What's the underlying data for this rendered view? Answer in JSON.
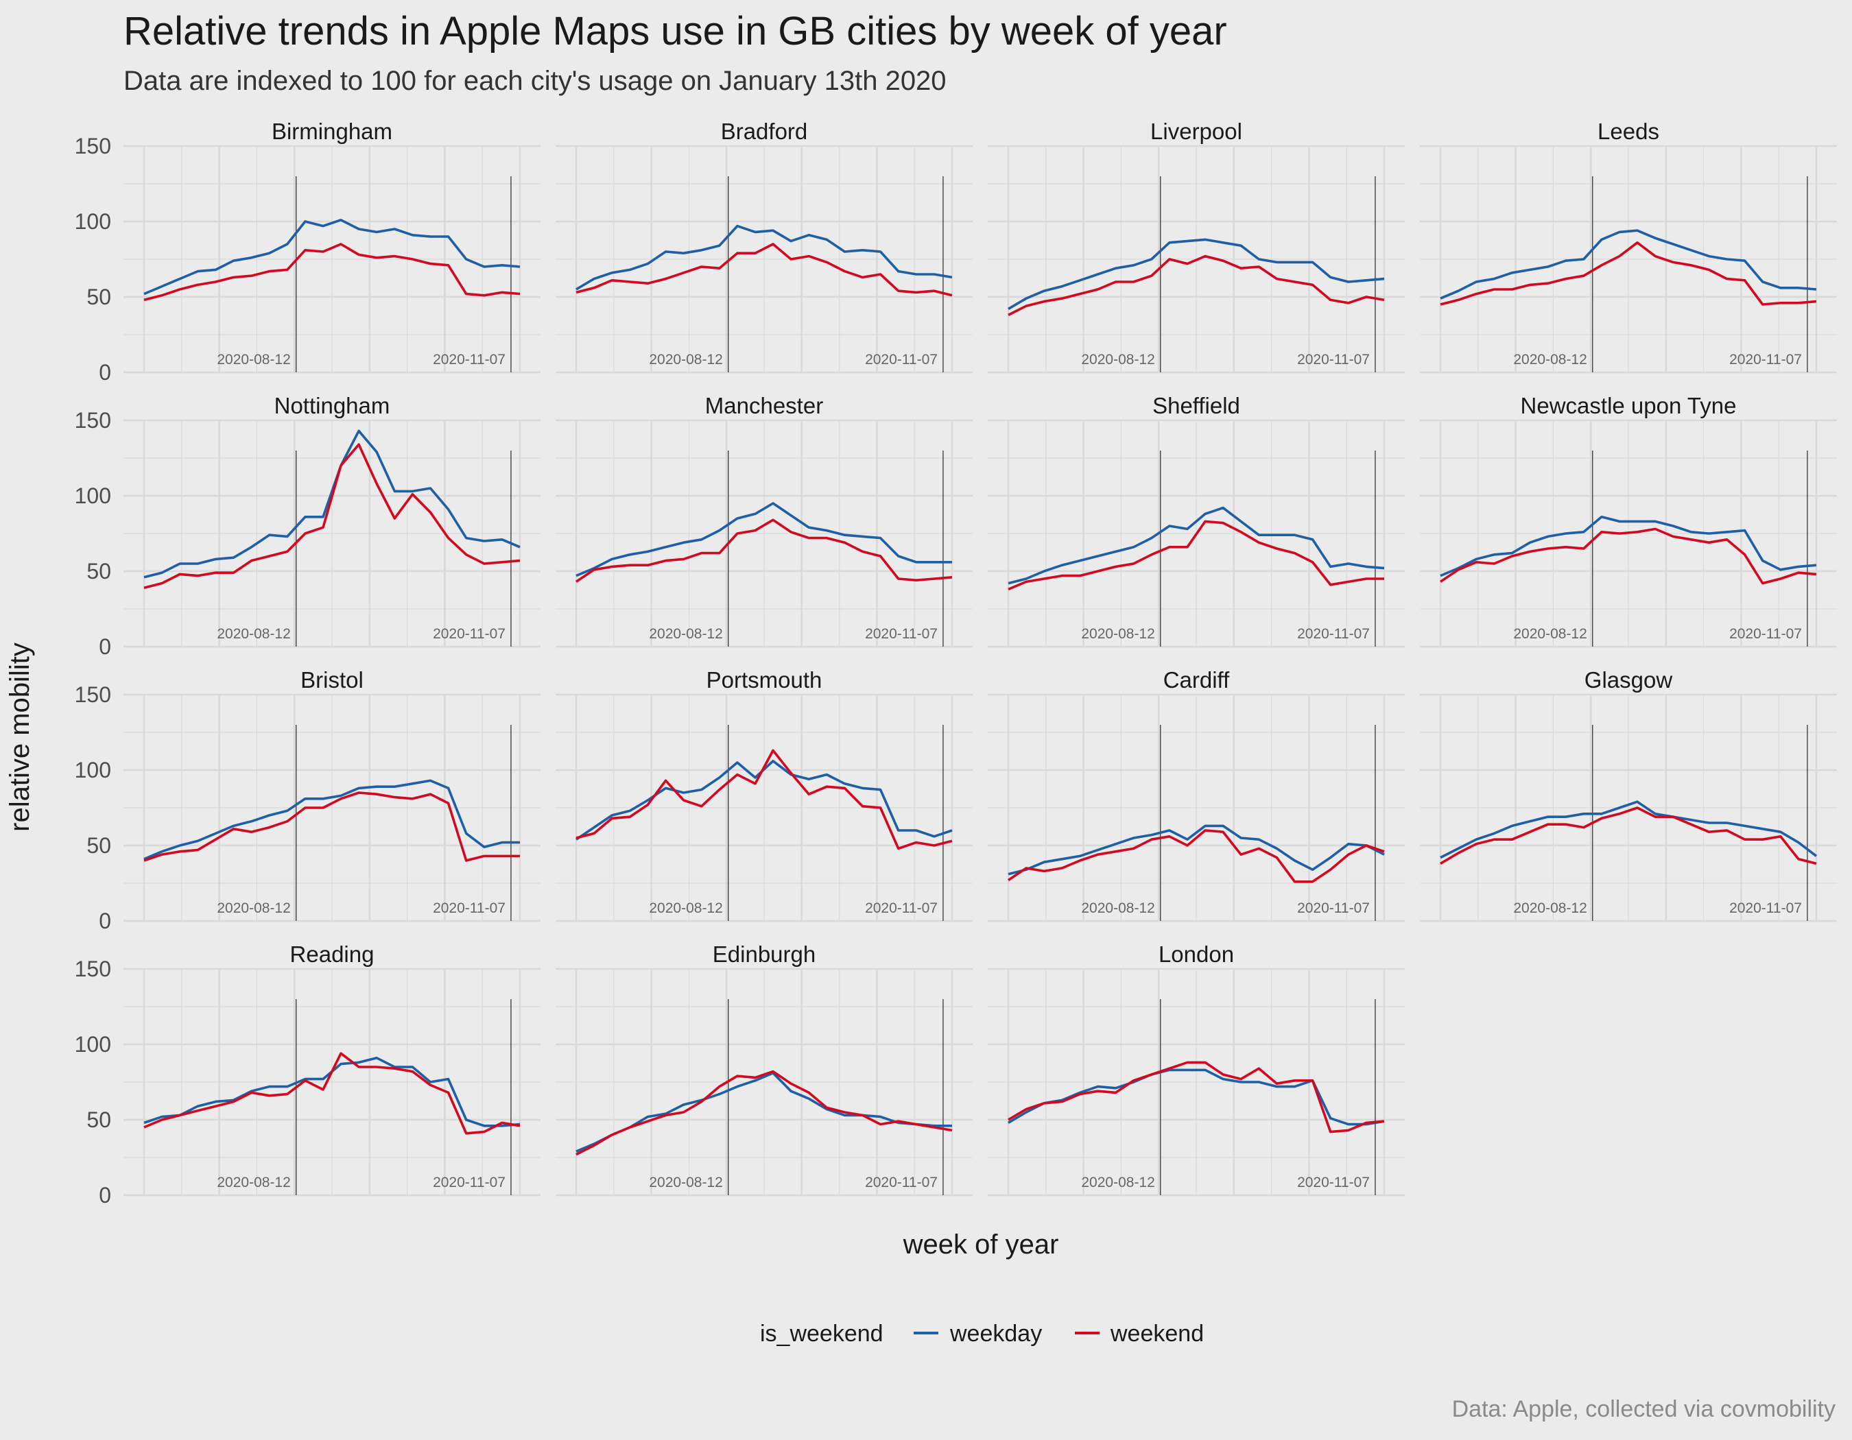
{
  "title": "Relative trends in Apple Maps use in GB cities by week of year",
  "subtitle": "Data are indexed to 100 for each city's usage on January 13th 2020",
  "caption": "Data: Apple, collected via covmobility",
  "colors": {
    "weekday": "#1f5fa6",
    "weekend": "#d3091f",
    "background": "#ebebeb",
    "grid": "#d9d9d9",
    "vline": "#000000"
  },
  "chart_data": {
    "type": "line",
    "xlabel": "week of year",
    "ylabel": "relative mobility",
    "ylim": [
      0,
      150
    ],
    "yticks": [
      0,
      50,
      100,
      150
    ],
    "grid": true,
    "facet_layout": "4 columns x 4 rows",
    "legend": {
      "title": "is_weekend",
      "position": "bottom",
      "entries": [
        "weekday",
        "weekend"
      ]
    },
    "vlines": [
      {
        "label": "2020-08-12",
        "week_index": 8.5
      },
      {
        "label": "2020-11-07",
        "week_index": 20.5
      }
    ],
    "week_count": 22,
    "panels": [
      {
        "city": "Birmingham",
        "weekday": [
          52,
          57,
          62,
          67,
          68,
          74,
          76,
          79,
          85,
          100,
          97,
          101,
          95,
          93,
          95,
          91,
          90,
          90,
          75,
          70,
          71,
          70
        ],
        "weekend": [
          48,
          51,
          55,
          58,
          60,
          63,
          64,
          67,
          68,
          81,
          80,
          85,
          78,
          76,
          77,
          75,
          72,
          71,
          52,
          51,
          53,
          52
        ]
      },
      {
        "city": "Bradford",
        "weekday": [
          55,
          62,
          66,
          68,
          72,
          80,
          79,
          81,
          84,
          97,
          93,
          94,
          87,
          91,
          88,
          80,
          81,
          80,
          67,
          65,
          65,
          63
        ],
        "weekend": [
          53,
          56,
          61,
          60,
          59,
          62,
          66,
          70,
          69,
          79,
          79,
          85,
          75,
          77,
          73,
          67,
          63,
          65,
          54,
          53,
          54,
          51
        ]
      },
      {
        "city": "Liverpool",
        "weekday": [
          42,
          49,
          54,
          57,
          61,
          65,
          69,
          71,
          75,
          86,
          87,
          88,
          86,
          84,
          75,
          73,
          73,
          73,
          63,
          60,
          61,
          62
        ],
        "weekend": [
          38,
          44,
          47,
          49,
          52,
          55,
          60,
          60,
          64,
          75,
          72,
          77,
          74,
          69,
          70,
          62,
          60,
          58,
          48,
          46,
          50,
          48
        ]
      },
      {
        "city": "Leeds",
        "weekday": [
          49,
          54,
          60,
          62,
          66,
          68,
          70,
          74,
          75,
          88,
          93,
          94,
          89,
          85,
          81,
          77,
          75,
          74,
          60,
          56,
          56,
          55
        ],
        "weekend": [
          45,
          48,
          52,
          55,
          55,
          58,
          59,
          62,
          64,
          71,
          77,
          86,
          77,
          73,
          71,
          68,
          62,
          61,
          45,
          46,
          46,
          47
        ]
      },
      {
        "city": "Nottingham",
        "weekday": [
          46,
          49,
          55,
          55,
          58,
          59,
          66,
          74,
          73,
          86,
          86,
          120,
          143,
          129,
          103,
          103,
          105,
          91,
          72,
          70,
          71,
          66
        ],
        "weekend": [
          39,
          42,
          48,
          47,
          49,
          49,
          57,
          60,
          63,
          75,
          79,
          120,
          134,
          108,
          85,
          101,
          89,
          72,
          61,
          55,
          56,
          57
        ]
      },
      {
        "city": "Manchester",
        "weekday": [
          47,
          52,
          58,
          61,
          63,
          66,
          69,
          71,
          77,
          85,
          88,
          95,
          87,
          79,
          77,
          74,
          73,
          72,
          60,
          56,
          56,
          56
        ],
        "weekend": [
          43,
          51,
          53,
          54,
          54,
          57,
          58,
          62,
          62,
          75,
          77,
          84,
          76,
          72,
          72,
          69,
          63,
          60,
          45,
          44,
          45,
          46
        ]
      },
      {
        "city": "Sheffield",
        "weekday": [
          42,
          45,
          50,
          54,
          57,
          60,
          63,
          66,
          72,
          80,
          78,
          88,
          92,
          83,
          74,
          74,
          74,
          71,
          53,
          55,
          53,
          52
        ],
        "weekend": [
          38,
          43,
          45,
          47,
          47,
          50,
          53,
          55,
          61,
          66,
          66,
          83,
          82,
          76,
          69,
          65,
          62,
          56,
          41,
          43,
          45,
          45
        ]
      },
      {
        "city": "Newcastle upon Tyne",
        "weekday": [
          47,
          52,
          58,
          61,
          62,
          69,
          73,
          75,
          76,
          86,
          83,
          83,
          83,
          80,
          76,
          75,
          76,
          77,
          57,
          51,
          53,
          54
        ],
        "weekend": [
          43,
          51,
          56,
          55,
          60,
          63,
          65,
          66,
          65,
          76,
          75,
          76,
          78,
          73,
          71,
          69,
          71,
          61,
          42,
          45,
          49,
          48
        ]
      },
      {
        "city": "Bristol",
        "weekday": [
          41,
          46,
          50,
          53,
          58,
          63,
          66,
          70,
          73,
          81,
          81,
          83,
          88,
          89,
          89,
          91,
          93,
          88,
          58,
          49,
          52,
          52
        ],
        "weekend": [
          40,
          44,
          46,
          47,
          54,
          61,
          59,
          62,
          66,
          75,
          75,
          81,
          85,
          84,
          82,
          81,
          84,
          78,
          40,
          43,
          43,
          43
        ]
      },
      {
        "city": "Portsmouth",
        "weekday": [
          54,
          62,
          70,
          73,
          80,
          88,
          85,
          87,
          95,
          105,
          95,
          106,
          97,
          94,
          97,
          91,
          88,
          87,
          60,
          60,
          56,
          60
        ],
        "weekend": [
          55,
          58,
          68,
          69,
          77,
          93,
          80,
          76,
          87,
          97,
          91,
          113,
          98,
          84,
          89,
          88,
          76,
          75,
          48,
          52,
          50,
          53
        ]
      },
      {
        "city": "Cardiff",
        "weekday": [
          31,
          34,
          39,
          41,
          43,
          47,
          51,
          55,
          57,
          60,
          54,
          63,
          63,
          55,
          54,
          48,
          40,
          34,
          42,
          51,
          50,
          44
        ],
        "weekend": [
          27,
          35,
          33,
          35,
          40,
          44,
          46,
          48,
          54,
          56,
          50,
          60,
          59,
          44,
          48,
          42,
          26,
          26,
          34,
          44,
          50,
          46
        ]
      },
      {
        "city": "Glasgow",
        "weekday": [
          42,
          48,
          54,
          58,
          63,
          66,
          69,
          69,
          71,
          71,
          75,
          79,
          71,
          69,
          67,
          65,
          65,
          63,
          61,
          59,
          52,
          43
        ],
        "weekend": [
          38,
          45,
          51,
          54,
          54,
          59,
          64,
          64,
          62,
          68,
          71,
          75,
          69,
          69,
          64,
          59,
          60,
          54,
          54,
          56,
          41,
          38
        ]
      },
      {
        "city": "Reading",
        "weekday": [
          48,
          52,
          53,
          59,
          62,
          63,
          69,
          72,
          72,
          77,
          77,
          87,
          88,
          91,
          85,
          85,
          75,
          77,
          50,
          46,
          46,
          47
        ],
        "weekend": [
          45,
          50,
          53,
          56,
          59,
          62,
          68,
          66,
          67,
          76,
          70,
          94,
          85,
          85,
          84,
          82,
          73,
          68,
          41,
          42,
          48,
          46
        ]
      },
      {
        "city": "Edinburgh",
        "weekday": [
          29,
          34,
          40,
          45,
          52,
          54,
          60,
          63,
          67,
          72,
          76,
          81,
          69,
          64,
          57,
          53,
          53,
          52,
          48,
          47,
          46,
          46
        ],
        "weekend": [
          27,
          33,
          40,
          45,
          49,
          53,
          55,
          62,
          72,
          79,
          78,
          82,
          74,
          68,
          58,
          55,
          53,
          47,
          49,
          47,
          45,
          43
        ]
      },
      {
        "city": "London",
        "weekday": [
          48,
          55,
          61,
          63,
          68,
          72,
          71,
          75,
          80,
          83,
          83,
          83,
          77,
          75,
          75,
          72,
          72,
          76,
          51,
          47,
          47,
          49
        ],
        "weekend": [
          50,
          57,
          61,
          62,
          67,
          69,
          68,
          76,
          80,
          84,
          88,
          88,
          80,
          77,
          84,
          74,
          76,
          76,
          42,
          43,
          48,
          49
        ]
      }
    ]
  }
}
